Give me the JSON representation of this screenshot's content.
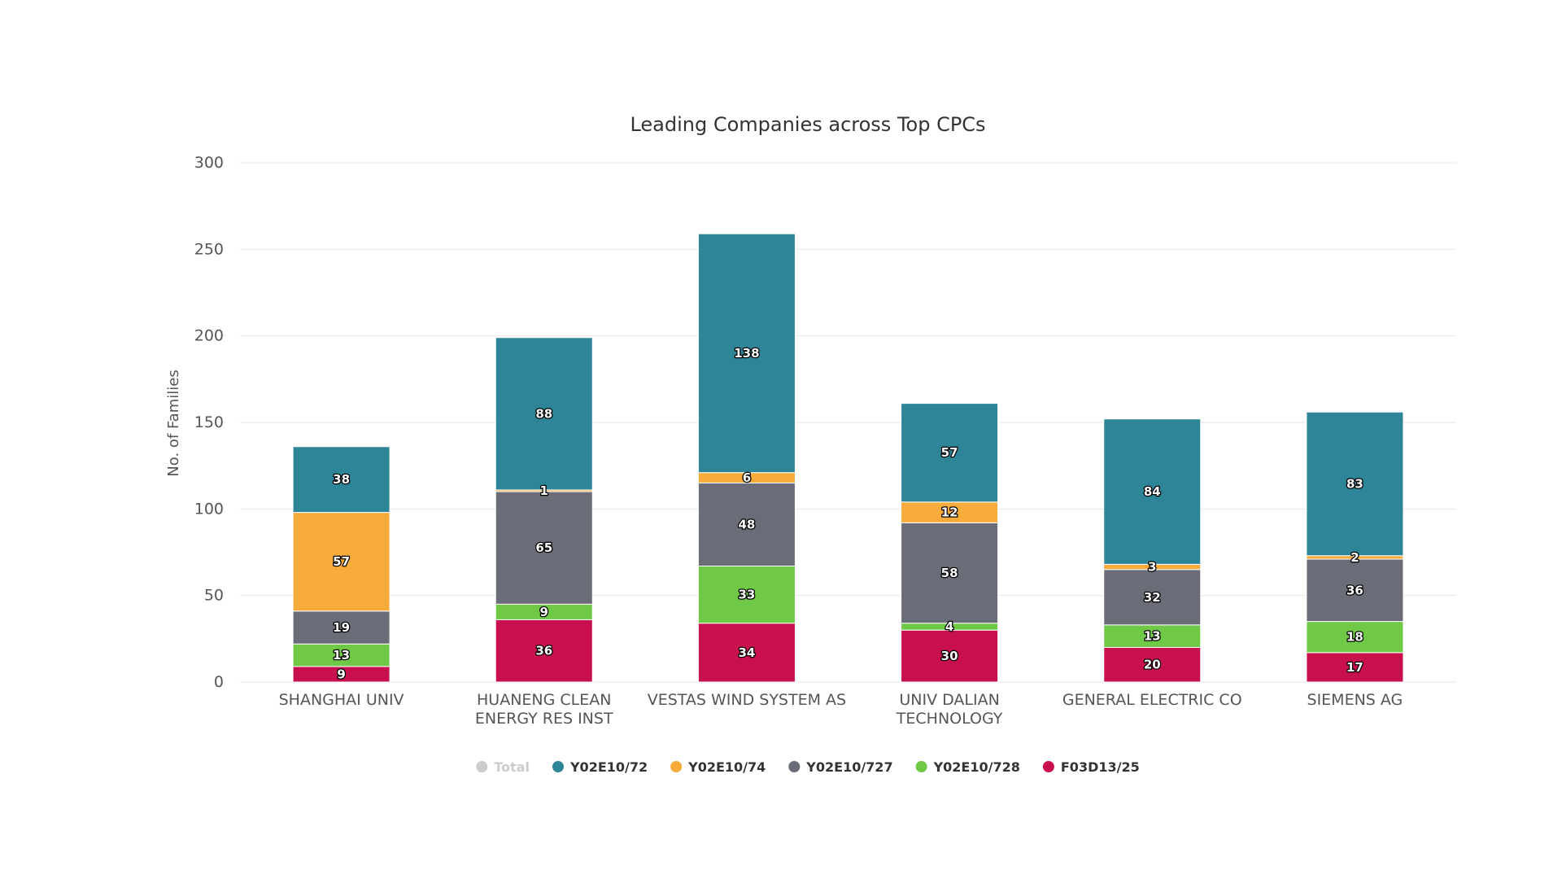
{
  "chart_data": {
    "type": "bar",
    "stacked": true,
    "title": "Leading Companies across Top CPCs",
    "ylabel": "No. of Families",
    "xlabel": "",
    "ylim": [
      0,
      300
    ],
    "yticks": [
      0,
      50,
      100,
      150,
      200,
      250,
      300
    ],
    "grid": true,
    "legend_position": "bottom-center",
    "categories": [
      [
        "SHANGHAI UNIV"
      ],
      [
        "HUANENG CLEAN",
        "ENERGY RES INST"
      ],
      [
        "VESTAS WIND SYSTEM AS"
      ],
      [
        "UNIV DALIAN",
        "TECHNOLOGY"
      ],
      [
        "GENERAL ELECTRIC CO"
      ],
      [
        "SIEMENS AG"
      ]
    ],
    "series": [
      {
        "name": "F03D13/25",
        "color": "#c8104e",
        "values": [
          9,
          36,
          34,
          30,
          20,
          17
        ]
      },
      {
        "name": "Y02E10/728",
        "color": "#6fc947",
        "values": [
          13,
          9,
          33,
          4,
          13,
          18
        ]
      },
      {
        "name": "Y02E10/727",
        "color": "#6a6c78",
        "values": [
          19,
          65,
          48,
          58,
          32,
          36
        ]
      },
      {
        "name": "Y02E10/74",
        "color": "#f6ab3a",
        "values": [
          57,
          1,
          6,
          12,
          3,
          2
        ]
      },
      {
        "name": "Y02E10/72",
        "color": "#2e8597",
        "values": [
          38,
          88,
          138,
          57,
          84,
          83
        ]
      }
    ],
    "legend": [
      {
        "name": "Total",
        "color": "#cccccc",
        "hidden": true
      },
      {
        "name": "Y02E10/72",
        "color": "#2e8597",
        "hidden": false
      },
      {
        "name": "Y02E10/74",
        "color": "#f6ab3a",
        "hidden": false
      },
      {
        "name": "Y02E10/727",
        "color": "#6a6c78",
        "hidden": false
      },
      {
        "name": "Y02E10/728",
        "color": "#6fc947",
        "hidden": false
      },
      {
        "name": "F03D13/25",
        "color": "#c8104e",
        "hidden": false
      }
    ]
  }
}
